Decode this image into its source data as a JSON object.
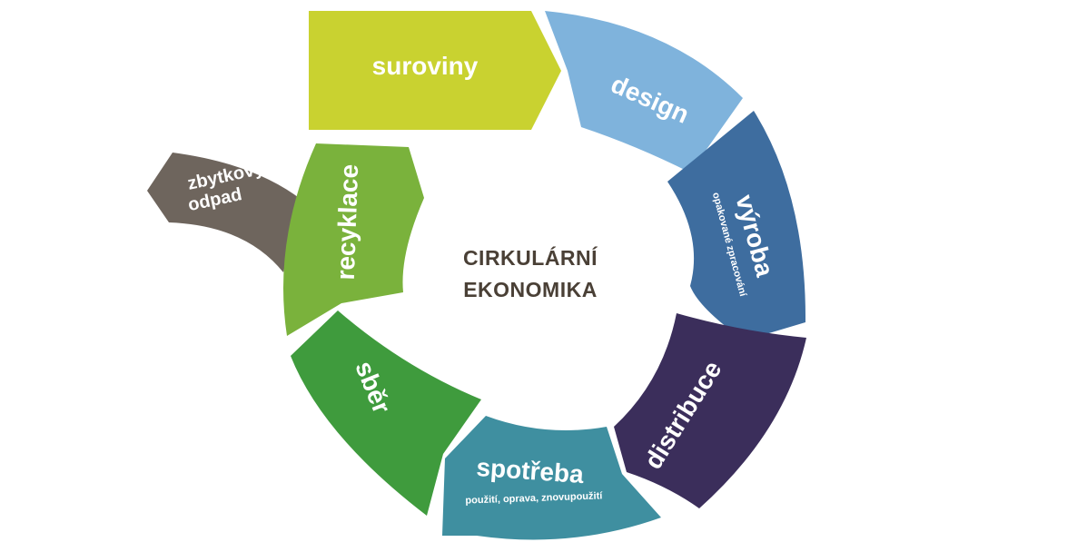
{
  "center": {
    "line1": "CIRKULÁRNÍ",
    "line2": "EKONOMIKA"
  },
  "stages": {
    "raw_materials": {
      "label": "suroviny",
      "color": "#c9d230"
    },
    "design": {
      "label": "design",
      "color": "#7fb3dc"
    },
    "production": {
      "label": "výroba",
      "sublabel": "opakované zpracování",
      "color": "#3e6d9f"
    },
    "distribution": {
      "label": "distribuce",
      "color": "#3b2e5b"
    },
    "consumption": {
      "label": "spotřeba",
      "sublabel": "použití, oprava, znovupoužití",
      "color": "#3f8fa0"
    },
    "collection": {
      "label": "sběr",
      "color": "#3f9b3d"
    },
    "recycling": {
      "label": "recyklace",
      "color": "#7ab23c"
    },
    "residual_waste": {
      "label_line1": "zbytkový",
      "label_line2": "odpad",
      "color": "#6e655d"
    }
  }
}
